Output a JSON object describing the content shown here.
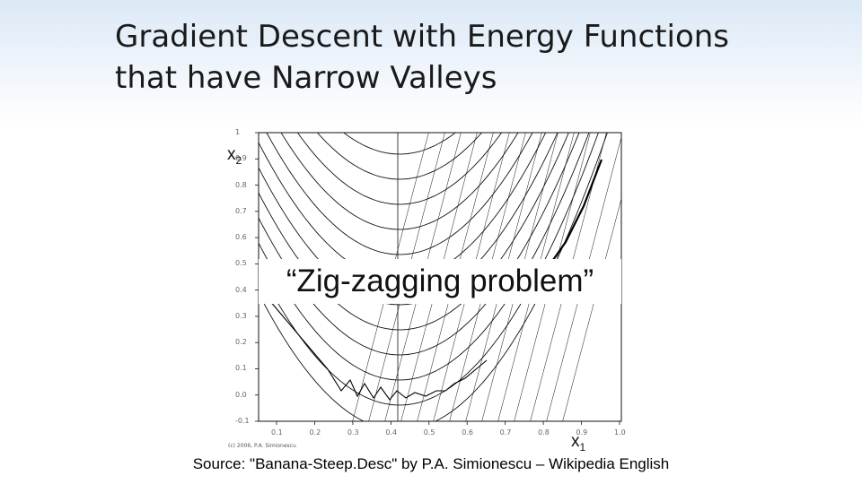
{
  "slide": {
    "title_line1": "Gradient Descent with Energy Functions",
    "title_line2": "that have Narrow Valleys",
    "callout": "“Zig-zagging problem”",
    "source": "Source: \"Banana-Steep.Desc\" by P.A. Simionescu – Wikipedia English",
    "copyright": "(c) 2006, P.A. Simionescu"
  },
  "figure": {
    "x_label_main": "x",
    "x_label_sub": "1",
    "y_label_main": "x",
    "y_label_sub": "2",
    "y_ticks": [
      "1",
      "0.9",
      "0.8",
      "0.7",
      "0.6",
      "0.5",
      "0.4",
      "0.3",
      "0.2",
      "0.1",
      "0.0",
      "-0.1"
    ],
    "x_ticks": [
      "0.1",
      "0.2",
      "0.3",
      "0.4",
      "0.5",
      "0.6",
      "0.7",
      "0.8",
      "0.9",
      "1.0"
    ],
    "colors": {
      "contour": "#111111",
      "path": "#000000",
      "background": "#ffffff"
    }
  }
}
